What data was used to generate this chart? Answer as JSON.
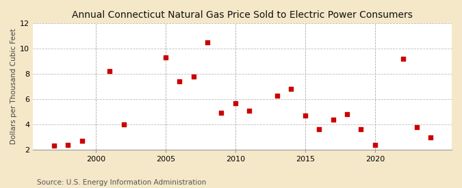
{
  "title": "Annual Connecticut Natural Gas Price Sold to Electric Power Consumers",
  "ylabel": "Dollars per Thousand Cubic Feet",
  "source": "Source: U.S. Energy Information Administration",
  "background_color": "#f5e8c8",
  "plot_bg_color": "#ffffff",
  "x_values": [
    1997,
    1998,
    1999,
    2001,
    2002,
    2005,
    2006,
    2007,
    2008,
    2009,
    2010,
    2011,
    2013,
    2014,
    2015,
    2016,
    2017,
    2018,
    2019,
    2020,
    2022,
    2023,
    2024
  ],
  "y_values": [
    2.3,
    2.4,
    2.7,
    8.2,
    4.0,
    9.3,
    7.4,
    7.8,
    10.5,
    4.9,
    5.7,
    5.1,
    6.3,
    6.8,
    4.7,
    3.6,
    4.4,
    4.8,
    3.6,
    2.4,
    9.2,
    3.8,
    3.0
  ],
  "marker_color": "#cc0000",
  "marker": "s",
  "marker_size": 16,
  "xlim": [
    1995.5,
    2025.5
  ],
  "ylim": [
    2,
    12
  ],
  "yticks": [
    2,
    4,
    6,
    8,
    10,
    12
  ],
  "xticks": [
    2000,
    2005,
    2010,
    2015,
    2020
  ],
  "h_grid_color": "#bbbbbb",
  "v_grid_color": "#aaaaaa",
  "title_fontsize": 10,
  "label_fontsize": 7.5,
  "tick_fontsize": 8,
  "source_fontsize": 7.5
}
